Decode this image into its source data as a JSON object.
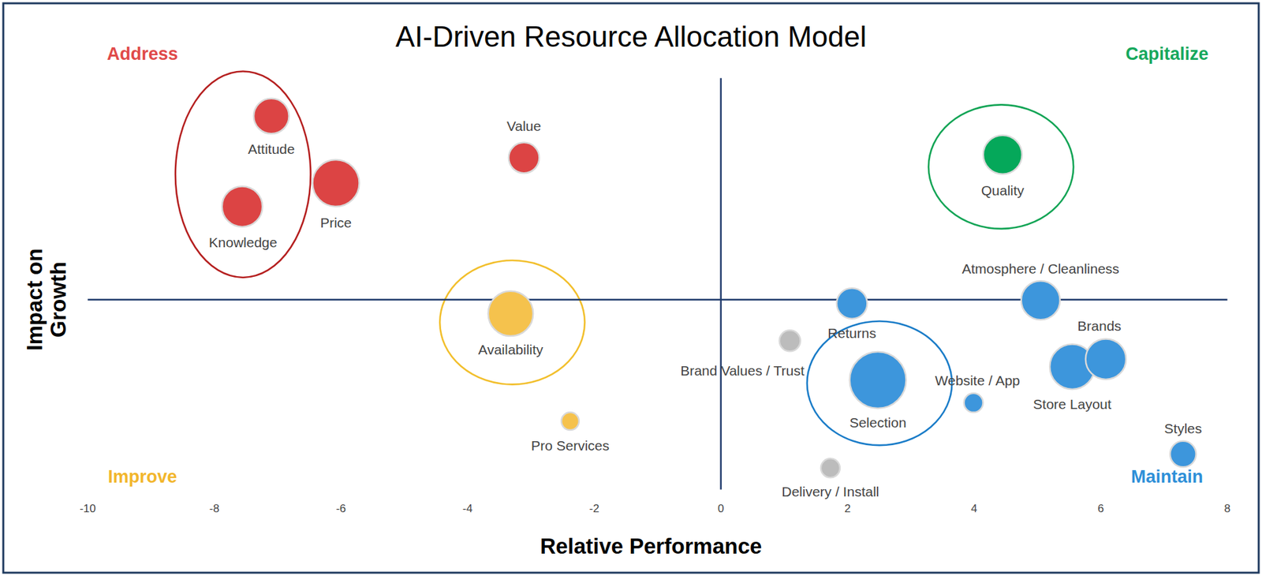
{
  "chart_data": {
    "type": "bubble",
    "title": "AI-Driven Resource Allocation Model",
    "x_label": "Relative Performance",
    "y_label": "Impact on Growth",
    "xlim": [
      -10,
      8
    ],
    "xticks": [
      -10,
      -8,
      -6,
      -4,
      -2,
      0,
      2,
      4,
      6,
      8
    ],
    "ylim": [
      -3,
      3.5
    ],
    "tick_labels": "x",
    "quadrant_lines": {
      "x": 0,
      "y": 0
    },
    "quadrant_labels": [
      {
        "text": "Address",
        "color": "#e04a4a"
      },
      {
        "text": "Capitalize",
        "color": "#16a85c"
      },
      {
        "text": "Improve",
        "color": "#f2b62c"
      },
      {
        "text": "Maintain",
        "color": "#2e8fd8"
      }
    ],
    "labels": [
      "Attitude",
      "Knowledge",
      "Price",
      "Value",
      "Quality",
      "Availability",
      "Pro Services",
      "Returns",
      "Atmosphere / Cleanliness",
      "Brand Values / Trust",
      "Selection",
      "Website / App",
      "Store Layout",
      "Brands",
      "Styles",
      "Delivery / Install"
    ],
    "x": [
      -7.1,
      -7.56,
      -6.08,
      -3.11,
      4.45,
      -3.32,
      -2.38,
      2.07,
      5.05,
      1.09,
      2.48,
      3.99,
      5.55,
      6.08,
      7.3,
      1.73
    ],
    "y": [
      2.9,
      1.47,
      1.84,
      2.24,
      2.29,
      -0.22,
      -1.92,
      -0.06,
      -0.01,
      -0.65,
      -1.27,
      -1.63,
      -1.06,
      -0.94,
      -2.44,
      -2.66
    ],
    "sizes": [
      4.8,
      6.3,
      8.4,
      3.6,
      5.8,
      7.8,
      1.2,
      3.6,
      5.8,
      1.7,
      12.3,
      1.4,
      7.8,
      6.3,
      2.6,
      1.4
    ],
    "colors": [
      "#dc4444",
      "#dc4444",
      "#dc4444",
      "#dc4444",
      "#05a85a",
      "#f5c24d",
      "#f5c24d",
      "#3d96dc",
      "#3d96dc",
      "#bcbcbc",
      "#3d96dc",
      "#3d96dc",
      "#3d96dc",
      "#3d96dc",
      "#3d96dc",
      "#bcbcbc"
    ]
  }
}
